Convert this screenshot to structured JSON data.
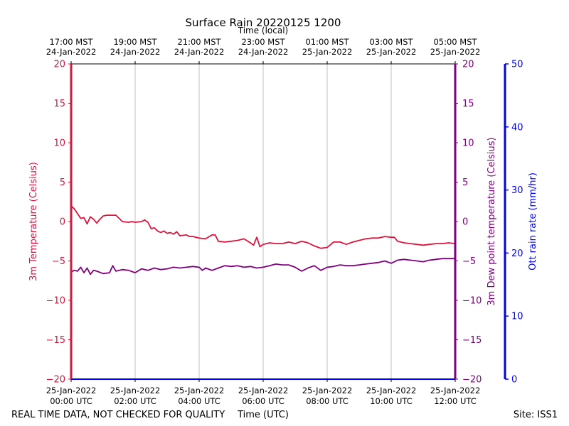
{
  "chart_data": {
    "type": "line",
    "title": "Surface Rain 20220125 1200",
    "top_xlabel": "Time (local)",
    "xlabel": "Time (UTC)",
    "footer_left": "REAL TIME DATA, NOT CHECKED FOR QUALITY",
    "footer_right": "Site: ISS1",
    "x_range_hours": [
      0,
      12
    ],
    "grid": "vertical",
    "bottom_ticks": [
      {
        "h": 0,
        "date": "25-Jan-2022",
        "time": "00:00 UTC"
      },
      {
        "h": 2,
        "date": "25-Jan-2022",
        "time": "02:00 UTC"
      },
      {
        "h": 4,
        "date": "25-Jan-2022",
        "time": "04:00 UTC"
      },
      {
        "h": 6,
        "date": "25-Jan-2022",
        "time": "06:00 UTC"
      },
      {
        "h": 8,
        "date": "25-Jan-2022",
        "time": "08:00 UTC"
      },
      {
        "h": 10,
        "date": "25-Jan-2022",
        "time": "10:00 UTC"
      },
      {
        "h": 12,
        "date": "25-Jan-2022",
        "time": "12:00 UTC"
      }
    ],
    "top_ticks": [
      {
        "h": 0,
        "time": "17:00 MST",
        "date": "24-Jan-2022"
      },
      {
        "h": 2,
        "time": "19:00 MST",
        "date": "24-Jan-2022"
      },
      {
        "h": 4,
        "time": "21:00 MST",
        "date": "24-Jan-2022"
      },
      {
        "h": 6,
        "time": "23:00 MST",
        "date": "24-Jan-2022"
      },
      {
        "h": 8,
        "time": "01:00 MST",
        "date": "25-Jan-2022"
      },
      {
        "h": 10,
        "time": "03:00 MST",
        "date": "25-Jan-2022"
      },
      {
        "h": 12,
        "time": "05:00 MST",
        "date": "25-Jan-2022"
      }
    ],
    "axes": {
      "temp": {
        "label": "3m Temperature (Celsius)",
        "range": [
          -20,
          20
        ],
        "ticks": [
          -20,
          -15,
          -10,
          -5,
          0,
          5,
          10,
          15,
          20
        ],
        "color": "#dc143c"
      },
      "dew": {
        "label": "3m Dew point temperature (Celsius)",
        "range": [
          -20,
          20
        ],
        "ticks": [
          -20,
          -15,
          -10,
          -5,
          0,
          5,
          10,
          15,
          20
        ],
        "color": "#800080"
      },
      "rain": {
        "label": "Ott rain rate (mm/hr)",
        "range": [
          0,
          50
        ],
        "ticks": [
          0,
          10,
          20,
          30,
          40,
          50
        ],
        "color": "#0000ff"
      }
    },
    "series": [
      {
        "name": "3m Temperature",
        "axis": "temp",
        "color": "#dc143c",
        "x": [
          0,
          0.1,
          0.2,
          0.3,
          0.4,
          0.5,
          0.6,
          0.7,
          0.8,
          0.9,
          1.0,
          1.1,
          1.2,
          1.4,
          1.6,
          1.8,
          1.9,
          2.0,
          2.2,
          2.3,
          2.4,
          2.5,
          2.6,
          2.7,
          2.8,
          2.9,
          3.0,
          3.1,
          3.2,
          3.3,
          3.4,
          3.6,
          3.7,
          3.8,
          4.0,
          4.2,
          4.4,
          4.5,
          4.6,
          4.8,
          5.0,
          5.2,
          5.4,
          5.6,
          5.7,
          5.8,
          5.9,
          6.0,
          6.1,
          6.2,
          6.4,
          6.6,
          6.8,
          7.0,
          7.2,
          7.4,
          7.6,
          7.8,
          8.0,
          8.2,
          8.4,
          8.6,
          8.8,
          9.0,
          9.2,
          9.4,
          9.6,
          9.8,
          10.0,
          10.1,
          10.2,
          10.4,
          10.6,
          10.8,
          11.0,
          11.2,
          11.4,
          11.6,
          11.8,
          12.0
        ],
        "values": [
          2.0,
          1.6,
          1.0,
          0.4,
          0.5,
          -0.3,
          0.6,
          0.3,
          -0.2,
          0.3,
          0.7,
          0.8,
          0.8,
          0.8,
          0.0,
          -0.1,
          0.0,
          -0.1,
          0.0,
          0.2,
          -0.1,
          -0.9,
          -0.8,
          -1.2,
          -1.4,
          -1.2,
          -1.5,
          -1.4,
          -1.6,
          -1.3,
          -1.8,
          -1.7,
          -1.9,
          -1.9,
          -2.1,
          -2.2,
          -1.7,
          -1.7,
          -2.5,
          -2.6,
          -2.5,
          -2.4,
          -2.2,
          -2.7,
          -3.0,
          -2.0,
          -3.2,
          -2.9,
          -2.8,
          -2.7,
          -2.8,
          -2.8,
          -2.6,
          -2.8,
          -2.5,
          -2.7,
          -3.1,
          -3.4,
          -3.3,
          -2.6,
          -2.6,
          -2.9,
          -2.6,
          -2.4,
          -2.2,
          -2.1,
          -2.1,
          -1.9,
          -2.0,
          -2.0,
          -2.5,
          -2.7,
          -2.8,
          -2.9,
          -3.0,
          -2.9,
          -2.8,
          -2.8,
          -2.7,
          -2.8
        ]
      },
      {
        "name": "3m Dew point temperature",
        "axis": "dew",
        "color": "#800080",
        "x": [
          0,
          0.1,
          0.2,
          0.3,
          0.4,
          0.5,
          0.6,
          0.7,
          0.8,
          1.0,
          1.2,
          1.3,
          1.4,
          1.6,
          1.8,
          2.0,
          2.2,
          2.4,
          2.6,
          2.8,
          3.0,
          3.2,
          3.4,
          3.6,
          3.8,
          4.0,
          4.1,
          4.2,
          4.4,
          4.6,
          4.8,
          5.0,
          5.2,
          5.4,
          5.6,
          5.8,
          6.0,
          6.2,
          6.4,
          6.6,
          6.8,
          7.0,
          7.2,
          7.4,
          7.6,
          7.8,
          8.0,
          8.2,
          8.4,
          8.6,
          8.8,
          9.0,
          9.2,
          9.4,
          9.6,
          9.8,
          10.0,
          10.2,
          10.4,
          10.6,
          10.8,
          11.0,
          11.2,
          11.4,
          11.6,
          11.8,
          12.0
        ],
        "values": [
          -6.4,
          -6.2,
          -6.3,
          -5.8,
          -6.5,
          -5.9,
          -6.7,
          -6.2,
          -6.3,
          -6.6,
          -6.5,
          -5.6,
          -6.3,
          -6.1,
          -6.2,
          -6.5,
          -6.0,
          -6.2,
          -5.9,
          -6.1,
          -6.0,
          -5.8,
          -5.9,
          -5.8,
          -5.7,
          -5.8,
          -6.2,
          -5.9,
          -6.2,
          -5.9,
          -5.6,
          -5.7,
          -5.6,
          -5.8,
          -5.7,
          -5.9,
          -5.8,
          -5.6,
          -5.4,
          -5.5,
          -5.5,
          -5.8,
          -6.3,
          -5.9,
          -5.6,
          -6.2,
          -5.8,
          -5.7,
          -5.5,
          -5.6,
          -5.6,
          -5.5,
          -5.4,
          -5.3,
          -5.2,
          -5.0,
          -5.3,
          -4.9,
          -4.8,
          -4.9,
          -5.0,
          -5.1,
          -4.9,
          -4.8,
          -4.7,
          -4.7,
          -4.7
        ]
      },
      {
        "name": "Ott rain rate",
        "axis": "rain",
        "color": "#0000ff",
        "x": [
          0,
          12
        ],
        "values": [
          0,
          0
        ]
      }
    ]
  }
}
